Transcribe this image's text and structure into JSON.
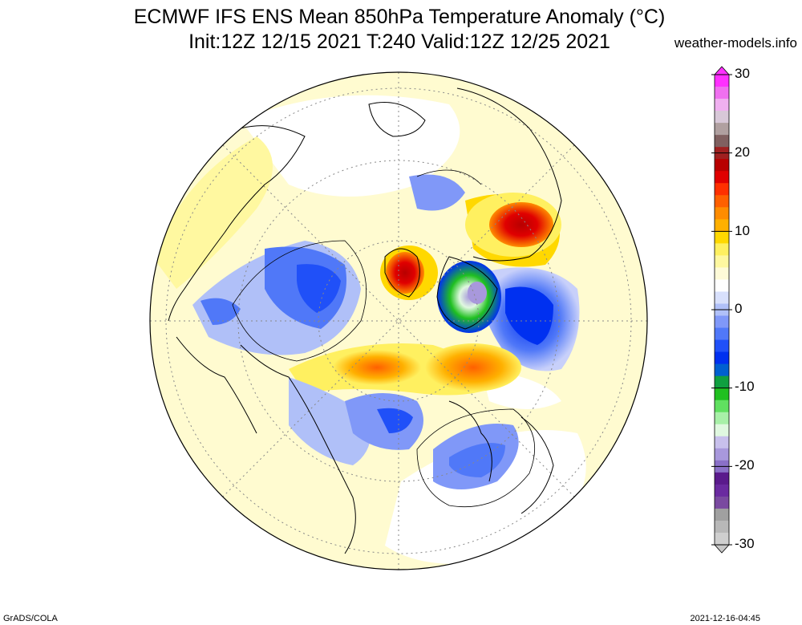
{
  "header": {
    "title_line1": "ECMWF IFS ENS Mean 850hPa Temperature Anomaly (°C)",
    "title_line2": "Init:12Z 12/15 2021  T:240 Valid:12Z 12/25 2021",
    "credit": "weather-models.info"
  },
  "footer": {
    "software": "GrADS/COLA",
    "timestamp": "2021-12-16-04:45"
  },
  "colorbar": {
    "labels": [
      "30",
      "20",
      "10",
      "0",
      "-10",
      "-20",
      "-30"
    ],
    "colors": [
      "#cfcfcf",
      "#b8b8b8",
      "#a0a0a0",
      "#7a4aa0",
      "#6a2aa0",
      "#5a1a8c",
      "#8a70c8",
      "#a898dc",
      "#c8c0ec",
      "#e0f8e0",
      "#a8f0a8",
      "#60e060",
      "#20c020",
      "#10a040",
      "#0060d0",
      "#0030f0",
      "#2050f8",
      "#5078f8",
      "#8098f8",
      "#b0c0f8",
      "#d8e0fc",
      "#ffffff",
      "#fffbd8",
      "#fff8a0",
      "#fff060",
      "#ffd800",
      "#ffb000",
      "#ff8c00",
      "#ff6000",
      "#ff3000",
      "#e00000",
      "#b80000",
      "#a02020",
      "#806060",
      "#b0a0a0",
      "#d8c8d8",
      "#f0b0f0",
      "#f070f0",
      "#ff30ff"
    ],
    "top_color": "#ff30ff",
    "bottom_color": "#c8c8c8"
  },
  "map": {
    "projection": "north polar stereographic",
    "background": "#fffbd0"
  }
}
